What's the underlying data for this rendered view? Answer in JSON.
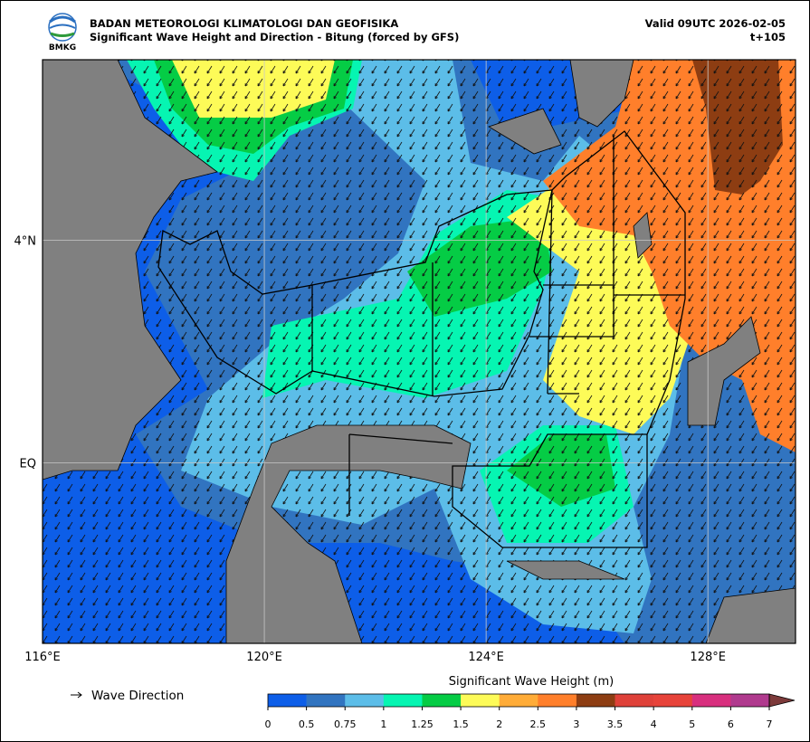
{
  "header": {
    "agency": "BADAN METEOROLOGI KLIMATOLOGI DAN GEOFISIKA",
    "title": "Significant Wave Height and Direction - Bitung (forced by GFS)",
    "logo_text": "BMKG",
    "valid": "Valid 09UTC 2026-02-05",
    "lead": "t+105"
  },
  "map": {
    "xlim": [
      116,
      129.58
    ],
    "ylim": [
      -3.24,
      7.24
    ],
    "xticks": [
      {
        "value": 116,
        "label": "116°E"
      },
      {
        "value": 120,
        "label": "120°E"
      },
      {
        "value": 124,
        "label": "124°E"
      },
      {
        "value": 128,
        "label": "128°E"
      }
    ],
    "yticks": [
      {
        "value": 4,
        "label": "4°N"
      },
      {
        "value": 0,
        "label": "EQ"
      }
    ],
    "grid": true
  },
  "legend": {
    "arrow_label": "Wave Direction"
  },
  "colorbar": {
    "title": "Significant Wave Height (m)",
    "ticks": [
      0,
      0.5,
      0.75,
      1,
      1.25,
      1.5,
      2,
      2.5,
      3,
      3.5,
      4,
      5,
      6,
      7
    ],
    "colors": [
      "#0d5ee8",
      "#3174c0",
      "#5cbde8",
      "#06f5b2",
      "#05cc45",
      "#fdfb58",
      "#ffac38",
      "#ff7f2b",
      "#8d3d12",
      "#df4139",
      "#e7433a",
      "#d82f7e",
      "#b03a8e"
    ],
    "extend_color": "#7d3a3a"
  }
}
